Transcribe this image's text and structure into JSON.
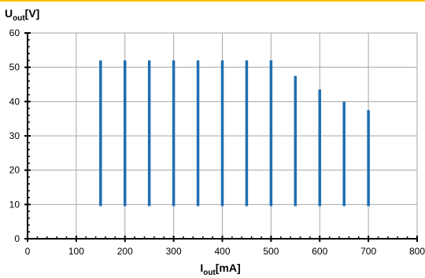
{
  "colors": {
    "top_rule": "#ffc000",
    "range_bar": "#1f6fb2",
    "grid": "#a6a6a6",
    "axis": "#000000",
    "plot_background": "#ffffff"
  },
  "chart_data": {
    "type": "range-bar",
    "title": "",
    "ylabel": {
      "main": "U",
      "sub": "out",
      "rest": "[V]"
    },
    "xlabel": {
      "main": "I",
      "sub": "out",
      "rest": "[mA]"
    },
    "xlim": [
      0,
      800
    ],
    "ylim": [
      0,
      60
    ],
    "xticks": [
      0,
      100,
      200,
      300,
      400,
      500,
      600,
      700,
      800
    ],
    "yticks": [
      0,
      10,
      20,
      30,
      40,
      50,
      60
    ],
    "grid": true,
    "bars": [
      {
        "x": 150,
        "ymin": 9.5,
        "ymax": 52
      },
      {
        "x": 200,
        "ymin": 9.5,
        "ymax": 52
      },
      {
        "x": 250,
        "ymin": 9.5,
        "ymax": 52
      },
      {
        "x": 300,
        "ymin": 9.5,
        "ymax": 52
      },
      {
        "x": 350,
        "ymin": 9.5,
        "ymax": 52
      },
      {
        "x": 400,
        "ymin": 9.5,
        "ymax": 52
      },
      {
        "x": 450,
        "ymin": 9.5,
        "ymax": 52
      },
      {
        "x": 500,
        "ymin": 9.5,
        "ymax": 52
      },
      {
        "x": 550,
        "ymin": 9.5,
        "ymax": 47.5
      },
      {
        "x": 600,
        "ymin": 9.5,
        "ymax": 43.5
      },
      {
        "x": 650,
        "ymin": 9.5,
        "ymax": 40
      },
      {
        "x": 700,
        "ymin": 9.5,
        "ymax": 37.5
      }
    ]
  }
}
